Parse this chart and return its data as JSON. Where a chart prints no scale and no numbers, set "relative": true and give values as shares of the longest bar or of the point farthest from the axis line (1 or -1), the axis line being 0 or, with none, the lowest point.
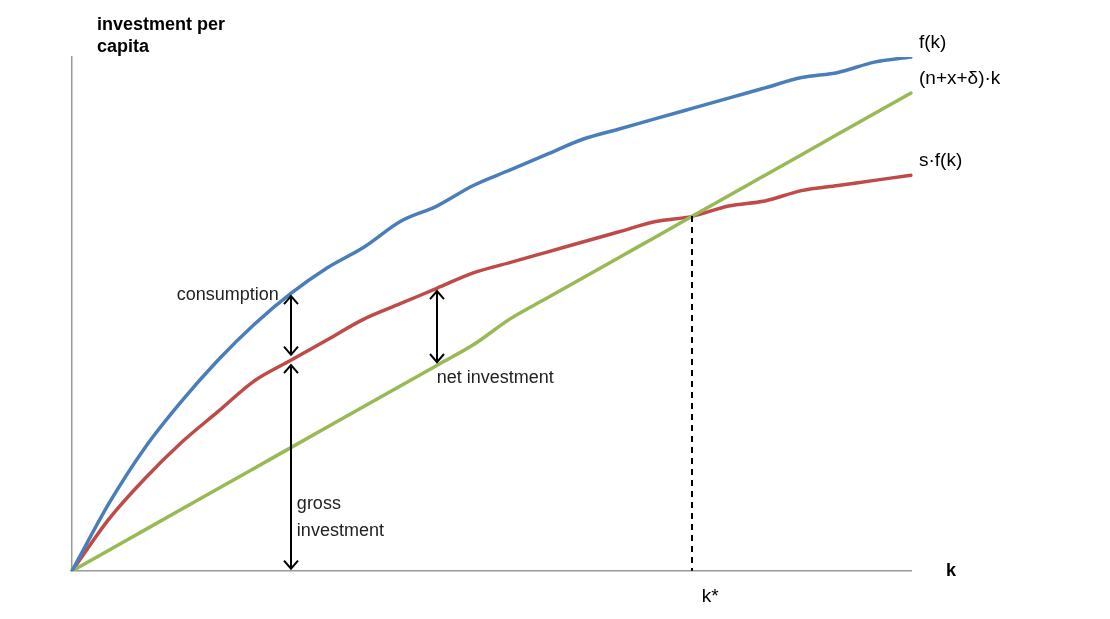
{
  "chart_data": {
    "type": "line",
    "relative": true,
    "xlabel": "k",
    "ylabel": "investment per capita",
    "grid": false,
    "legend": false,
    "marker": "none",
    "line_style": "solid",
    "categories": [
      null,
      null,
      null,
      null,
      null,
      null,
      null,
      null,
      null,
      null,
      null,
      null,
      null,
      null,
      null,
      null,
      null,
      null,
      null,
      null,
      null,
      null,
      null,
      null
    ],
    "series": [
      {
        "name": "f(k)",
        "color": "#4a7ebb",
        "values": [
          0,
          0.13,
          0.24,
          0.33,
          0.41,
          0.48,
          0.54,
          0.59,
          0.63,
          0.68,
          0.71,
          0.75,
          0.78,
          0.81,
          0.84,
          0.86,
          0.88,
          0.9,
          0.92,
          0.94,
          0.96,
          0.97,
          0.99,
          1.0
        ]
      },
      {
        "name": "(n+x+δ)·k",
        "color": "#98b954",
        "values": [
          0,
          0.04,
          0.08,
          0.12,
          0.16,
          0.2,
          0.24,
          0.28,
          0.32,
          0.36,
          0.4,
          0.44,
          0.49,
          0.53,
          0.57,
          0.61,
          0.65,
          0.69,
          0.73,
          0.77,
          0.81,
          0.85,
          0.89,
          0.93
        ]
      },
      {
        "name": "s·f(k)",
        "color": "#be4b48",
        "values": [
          0,
          0.1,
          0.18,
          0.25,
          0.31,
          0.37,
          0.41,
          0.45,
          0.49,
          0.52,
          0.55,
          0.58,
          0.6,
          0.62,
          0.64,
          0.66,
          0.68,
          0.69,
          0.71,
          0.72,
          0.74,
          0.75,
          0.76,
          0.77
        ]
      }
    ],
    "annotations": [
      "consumption",
      "net investment",
      "gross investment",
      "k*"
    ]
  }
}
